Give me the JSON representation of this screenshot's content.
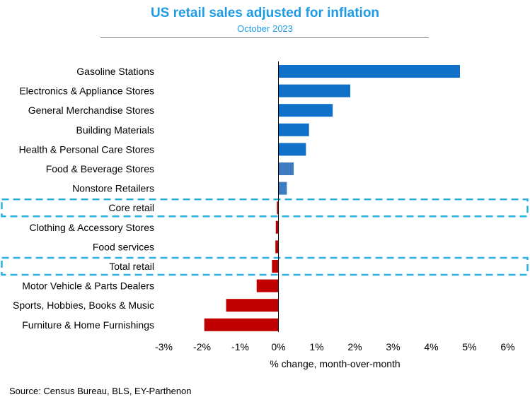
{
  "colors": {
    "title": "#1e9be6",
    "positive": "#1170c8",
    "positive_light": "#3d7cc0",
    "negative": "#c00000",
    "highlight_box": "#2ab0e3"
  },
  "chart_data": {
    "type": "bar",
    "orientation": "horizontal",
    "title": "US retail sales adjusted for inflation",
    "subtitle": "October 2023",
    "xlabel": "% change, month-over-month",
    "ylabel": "",
    "xlim": [
      -3,
      6
    ],
    "x_ticks": [
      -3,
      -2,
      -1,
      0,
      1,
      2,
      3,
      4,
      5,
      6
    ],
    "x_tick_labels": [
      "-3%",
      "-2%",
      "-1%",
      "0%",
      "1%",
      "2%",
      "3%",
      "4%",
      "5%",
      "6%"
    ],
    "categories": [
      "Gasoline Stations",
      "Electronics & Appliance Stores",
      "General Merchandise Stores",
      "Building Materials",
      "Health & Personal Care Stores",
      "Food & Beverage Stores",
      "Nonstore Retailers",
      "Core retail",
      "Clothing & Accessory Stores",
      "Food services",
      "Total retail",
      "Motor Vehicle & Parts Dealers",
      "Sports, Hobbies, Books & Music",
      "Furniture & Home Furnishings"
    ],
    "values": [
      4.75,
      1.88,
      1.42,
      0.8,
      0.72,
      0.4,
      0.22,
      -0.04,
      -0.07,
      -0.08,
      -0.17,
      -0.57,
      -1.37,
      -1.94
    ],
    "highlighted": [
      "Core retail",
      "Total retail"
    ],
    "legend": "none",
    "grid": false
  },
  "source": "Source: Census Bureau, BLS, EY-Parthenon"
}
